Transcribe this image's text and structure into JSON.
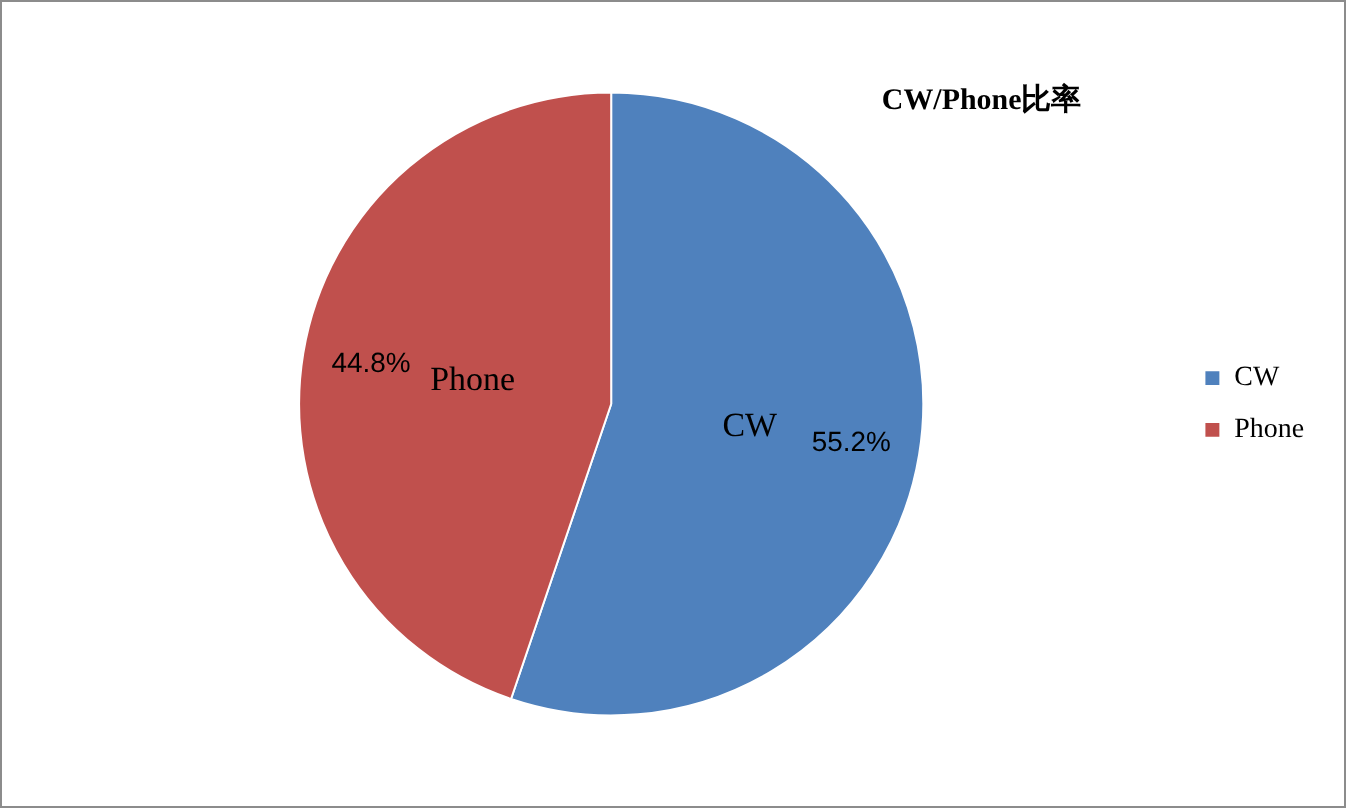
{
  "chart_data": {
    "type": "pie",
    "title": "CW/Phone比率",
    "categories": [
      "CW",
      "Phone"
    ],
    "values": [
      55.2,
      44.8
    ],
    "colors": [
      "#4f81bd",
      "#c0504d"
    ],
    "value_labels": [
      "55.2%",
      "44.8%"
    ],
    "legend": "right"
  }
}
